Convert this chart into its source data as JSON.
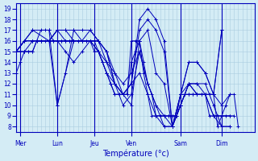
{
  "title": "Température (°c)",
  "ylabel_ticks": [
    8,
    9,
    10,
    11,
    12,
    13,
    14,
    15,
    16,
    17,
    18,
    19
  ],
  "ylim": [
    7.5,
    19.5
  ],
  "xlim": [
    0,
    58
  ],
  "background_color": "#d4ecf5",
  "line_color": "#0000bb",
  "grid_color": "#aacce0",
  "day_labels": [
    "Mer",
    "Lun",
    "Jeu",
    "Ven",
    "Sam",
    "Dim"
  ],
  "day_positions": [
    1,
    10,
    19,
    28,
    40,
    50
  ],
  "series": [
    [
      0,
      13,
      1,
      14,
      2,
      15,
      3,
      15,
      4,
      15,
      5,
      16,
      6,
      17,
      7,
      17,
      8,
      17,
      9,
      16,
      10,
      16,
      11,
      16,
      12,
      16,
      13,
      16,
      14,
      16,
      15,
      16,
      16,
      16,
      17,
      16,
      18,
      16,
      19,
      16,
      20,
      15,
      21,
      14,
      22,
      13,
      23,
      12,
      24,
      11,
      25,
      11,
      26,
      11,
      27,
      11,
      28,
      16,
      29,
      16,
      30,
      16,
      31,
      14,
      32,
      12,
      33,
      11,
      34,
      9,
      35,
      9,
      36,
      9,
      37,
      9,
      38,
      9,
      39,
      9,
      40,
      10,
      41,
      11,
      42,
      11,
      43,
      11,
      44,
      11,
      45,
      11,
      46,
      11,
      47,
      11,
      48,
      11,
      49,
      8,
      50,
      9,
      51,
      10,
      52,
      11,
      53,
      11,
      54,
      8
    ],
    [
      0,
      15,
      1,
      15,
      2,
      15,
      3,
      15,
      4,
      15,
      5,
      16,
      6,
      16,
      7,
      16,
      8,
      16,
      9,
      16,
      10,
      16,
      11,
      16,
      12,
      16,
      13,
      16,
      14,
      16,
      15,
      16,
      16,
      16,
      17,
      16,
      18,
      16,
      19,
      15,
      20,
      15,
      21,
      14,
      22,
      13,
      23,
      12,
      24,
      11,
      25,
      11,
      26,
      11,
      27,
      11,
      28,
      14,
      29,
      15,
      30,
      16,
      31,
      13,
      32,
      11,
      33,
      9,
      34,
      9,
      35,
      9,
      36,
      9,
      37,
      9,
      38,
      9,
      39,
      9,
      40,
      11,
      41,
      11,
      42,
      11,
      43,
      11,
      44,
      11,
      45,
      11,
      46,
      11,
      47,
      9,
      48,
      9,
      49,
      9,
      50,
      9,
      51,
      9,
      52,
      9,
      53,
      9
    ],
    [
      0,
      15,
      2,
      15,
      4,
      16,
      6,
      16,
      8,
      16,
      10,
      17,
      12,
      17,
      14,
      17,
      16,
      16,
      18,
      16,
      20,
      15,
      22,
      14,
      24,
      13,
      26,
      12,
      28,
      13,
      30,
      15,
      32,
      12,
      34,
      10,
      36,
      9,
      38,
      8,
      40,
      10,
      42,
      12,
      44,
      11,
      46,
      11,
      48,
      9,
      50,
      9,
      52,
      9
    ],
    [
      0,
      15,
      2,
      16,
      4,
      16,
      6,
      16,
      8,
      16,
      10,
      17,
      12,
      16,
      14,
      16,
      16,
      16,
      18,
      16,
      20,
      15,
      22,
      13,
      24,
      12,
      26,
      11,
      28,
      12,
      30,
      13,
      32,
      11,
      34,
      9,
      36,
      8,
      38,
      8,
      40,
      10,
      42,
      12,
      44,
      12,
      46,
      12,
      48,
      10,
      50,
      8,
      52,
      8
    ],
    [
      0,
      15,
      2,
      16,
      4,
      16,
      6,
      16,
      8,
      16,
      10,
      17,
      12,
      17,
      14,
      16,
      16,
      16,
      18,
      16,
      20,
      16,
      22,
      14,
      24,
      12,
      26,
      10,
      28,
      11,
      30,
      15,
      32,
      12,
      34,
      10,
      36,
      8,
      38,
      8,
      40,
      10,
      42,
      12,
      44,
      11,
      46,
      11,
      48,
      9,
      50,
      8,
      52,
      8
    ],
    [
      0,
      15,
      2,
      16,
      4,
      16,
      6,
      16,
      8,
      16,
      10,
      16,
      12,
      15,
      14,
      14,
      16,
      15,
      18,
      16,
      20,
      16,
      22,
      15,
      24,
      13,
      26,
      11,
      28,
      10,
      30,
      16,
      32,
      17,
      34,
      13,
      36,
      12,
      38,
      8,
      40,
      11,
      42,
      12,
      44,
      12,
      46,
      11,
      48,
      11,
      50,
      10,
      52,
      11
    ],
    [
      0,
      15,
      4,
      17,
      8,
      17,
      10,
      10,
      14,
      16,
      16,
      16,
      18,
      17,
      20,
      16,
      22,
      15,
      24,
      12,
      26,
      11,
      28,
      12,
      30,
      17,
      32,
      18,
      34,
      17,
      36,
      15,
      38,
      8,
      40,
      11,
      42,
      14,
      44,
      14,
      46,
      13,
      48,
      11,
      50,
      17
    ],
    [
      0,
      15,
      4,
      17,
      8,
      16,
      10,
      10,
      12,
      13,
      14,
      17,
      16,
      17,
      18,
      17,
      20,
      16,
      22,
      15,
      24,
      12,
      26,
      11,
      28,
      12,
      30,
      18,
      32,
      19,
      34,
      18,
      36,
      16,
      38,
      8,
      40,
      11,
      42,
      14,
      44,
      14,
      46,
      13,
      48,
      11,
      50,
      17
    ]
  ],
  "separator_positions": [
    1,
    10,
    19,
    28,
    40,
    50
  ]
}
